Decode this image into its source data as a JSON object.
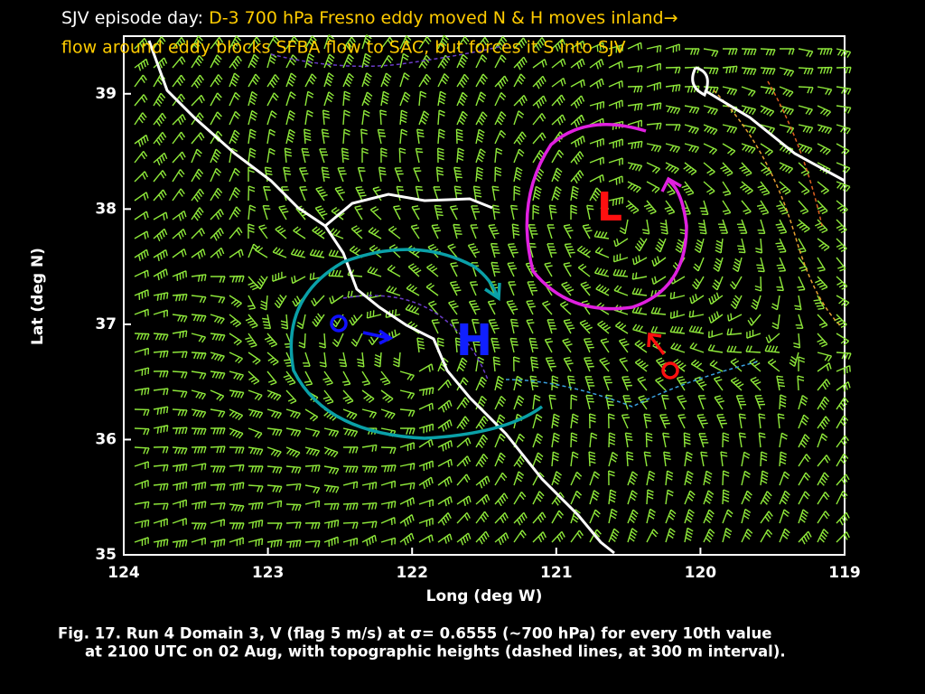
{
  "header": {
    "lead": "SJV episode day: ",
    "line1": "D-3 700 hPa Fresno eddy moved N & H moves inland→",
    "line2": "flow around eddy blocks SFBA flow to SAC, but forces it S into SJV"
  },
  "map": {
    "xlabel": "Long (deg W)",
    "ylabel": "Lat (deg N)",
    "lon_lim": [
      124,
      119
    ],
    "lat_lim": [
      35,
      39.5
    ],
    "lon_ticks": [
      124,
      123,
      122,
      121,
      120,
      119
    ],
    "lat_ticks": [
      35,
      36,
      37,
      38,
      39
    ],
    "low_label": "L",
    "high_label": "H"
  },
  "caption": {
    "line1": "Fig. 17. Run 4 Domain 3, V (flag 5 m/s) at σ= 0.6555 (~700 hPa) for every 10th value",
    "line2": "at 2100 UTC on 02 Aug, with topographic heights (dashed lines, at 300 m interval)."
  }
}
